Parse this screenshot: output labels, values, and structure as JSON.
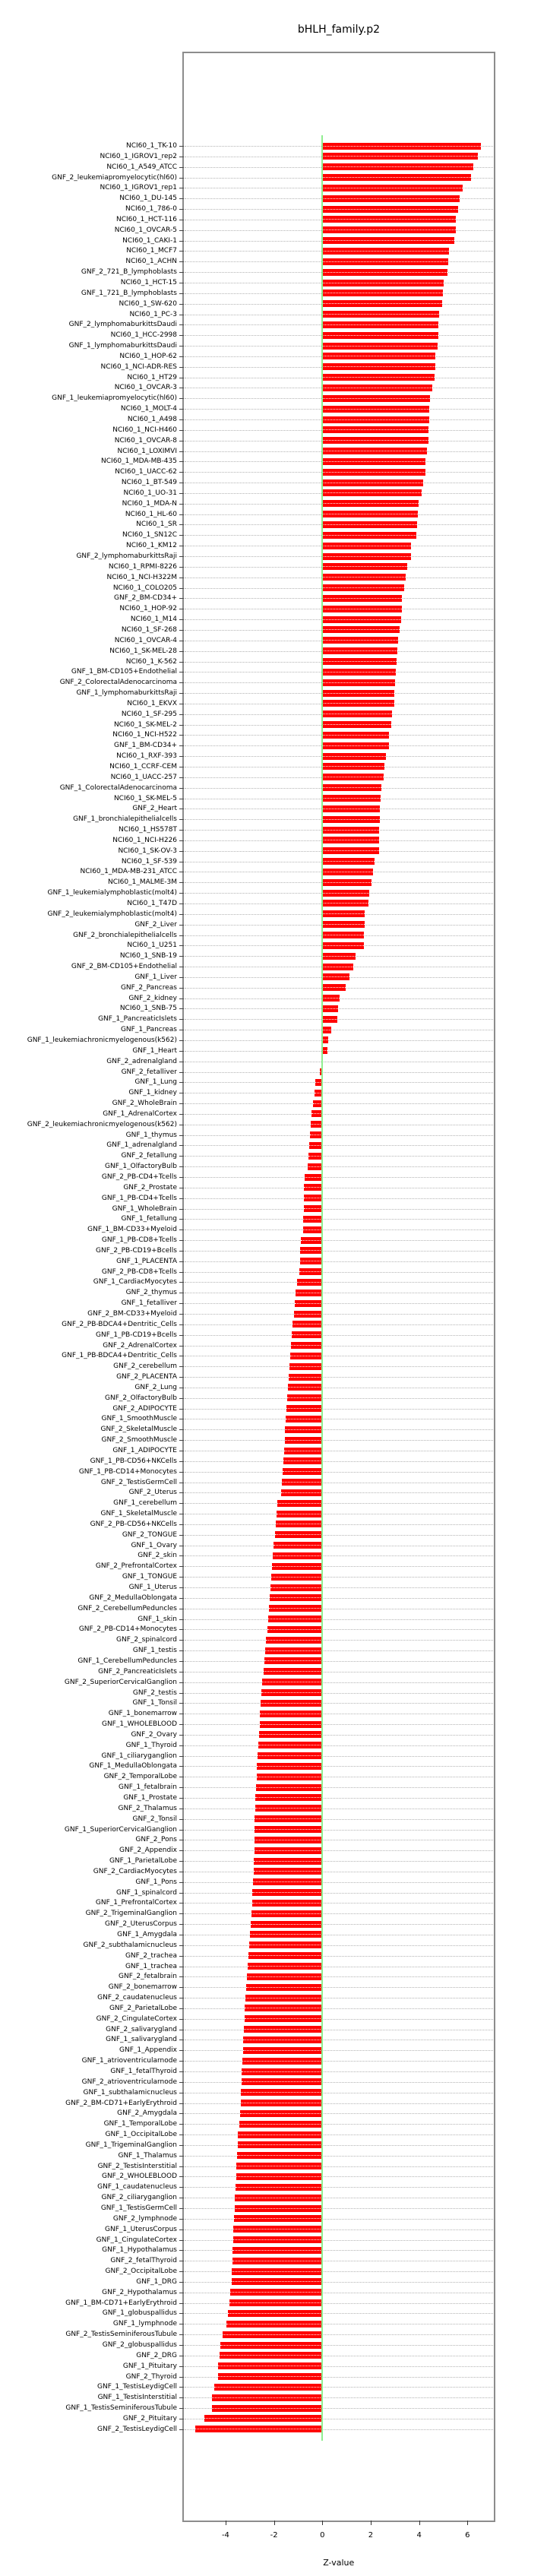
{
  "title": "bHLH_family.p2",
  "chart_data": {
    "type": "bar",
    "orientation": "horizontal",
    "title": "bHLH_family.p2",
    "xlabel": "Z-value",
    "xlim": [
      -5.7,
      7.0
    ],
    "xticks": [
      -4,
      -2,
      0,
      2,
      4,
      6
    ],
    "legend": "none",
    "grid": "dotted horizontal leader lines per row",
    "bar_color": "#ff0000",
    "zero_line_color": "#90ee90",
    "frame_color": "#8c8c8c",
    "categories": [
      "NCI60_1_TK-10",
      "NCI60_1_IGROV1_rep2",
      "NCI60_1_A549_ATCC",
      "GNF_2_leukemiapromyelocytic(hl60)",
      "NCI60_1_IGROV1_rep1",
      "NCI60_1_DU-145",
      "NCI60_1_786-0",
      "NCI60_1_HCT-116",
      "NCI60_1_OVCAR-5",
      "NCI60_1_CAKI-1",
      "NCI60_1_MCF7",
      "NCI60_1_ACHN",
      "GNF_2_721_B_lymphoblasts",
      "NCI60_1_HCT-15",
      "GNF_1_721_B_lymphoblasts",
      "NCI60_1_SW-620",
      "NCI60_1_PC-3",
      "GNF_2_lymphomaburkittsDaudi",
      "NCI60_1_HCC-2998",
      "GNF_1_lymphomaburkittsDaudi",
      "NCI60_1_HOP-62",
      "NCI60_1_NCI-ADR-RES",
      "NCI60_1_HT29",
      "NCI60_1_OVCAR-3",
      "GNF_1_leukemiapromyelocytic(hl60)",
      "NCI60_1_MOLT-4",
      "NCI60_1_A498",
      "NCI60_1_NCI-H460",
      "NCI60_1_OVCAR-8",
      "NCI60_1_LOXIMVI",
      "NCI60_1_MDA-MB-435",
      "NCI60_1_UACC-62",
      "NCI60_1_BT-549",
      "NCI60_1_UO-31",
      "NCI60_1_MDA-N",
      "NCI60_1_HL-60",
      "NCI60_1_SR",
      "NCI60_1_SN12C",
      "NCI60_1_KM12",
      "GNF_2_lymphomaburkittsRaji",
      "NCI60_1_RPMI-8226",
      "NCI60_1_NCI-H322M",
      "NCI60_1_COLO205",
      "GNF_2_BM-CD34+",
      "NCI60_1_HOP-92",
      "NCI60_1_M14",
      "NCI60_1_SF-268",
      "NCI60_1_OVCAR-4",
      "NCI60_1_SK-MEL-28",
      "NCI60_1_K-562",
      "GNF_1_BM-CD105+Endothelial",
      "GNF_2_ColorectalAdenocarcinoma",
      "GNF_1_lymphomaburkittsRaji",
      "NCI60_1_EKVX",
      "NCI60_1_SF-295",
      "NCI60_1_SK-MEL-2",
      "NCI60_1_NCI-H522",
      "GNF_1_BM-CD34+",
      "NCI60_1_RXF-393",
      "NCI60_1_CCRF-CEM",
      "NCI60_1_UACC-257",
      "GNF_1_ColorectalAdenocarcinoma",
      "NCI60_1_SK-MEL-5",
      "GNF_2_Heart",
      "GNF_1_bronchialepithelialcells",
      "NCI60_1_HS578T",
      "NCI60_1_NCI-H226",
      "NCI60_1_SK-OV-3",
      "NCI60_1_SF-539",
      "NCI60_1_MDA-MB-231_ATCC",
      "NCI60_1_MALME-3M",
      "GNF_1_leukemialymphoblastic(molt4)",
      "NCI60_1_T47D",
      "GNF_2_leukemialymphoblastic(molt4)",
      "GNF_2_Liver",
      "GNF_2_bronchialepithelialcells",
      "NCI60_1_U251",
      "NCI60_1_SNB-19",
      "GNF_2_BM-CD105+Endothelial",
      "GNF_1_Liver",
      "GNF_2_Pancreas",
      "GNF_2_kidney",
      "NCI60_1_SNB-75",
      "GNF_1_PancreaticIslets",
      "GNF_1_Pancreas",
      "GNF_1_leukemiachronicmyelogenous(k562)",
      "GNF_1_Heart",
      "GNF_2_adrenalgland",
      "GNF_2_fetalliver",
      "GNF_1_Lung",
      "GNF_1_kidney",
      "GNF_2_WholeBrain",
      "GNF_1_AdrenalCortex",
      "GNF_2_leukemiachronicmyelogenous(k562)",
      "GNF_1_thymus",
      "GNF_1_adrenalgland",
      "GNF_2_fetallung",
      "GNF_1_OlfactoryBulb",
      "GNF_2_PB-CD4+Tcells",
      "GNF_2_Prostate",
      "GNF_1_PB-CD4+Tcells",
      "GNF_1_WholeBrain",
      "GNF_1_fetallung",
      "GNF_1_BM-CD33+Myeloid",
      "GNF_1_PB-CD8+Tcells",
      "GNF_2_PB-CD19+Bcells",
      "GNF_1_PLACENTA",
      "GNF_2_PB-CD8+Tcells",
      "GNF_1_CardiacMyocytes",
      "GNF_2_thymus",
      "GNF_1_fetalliver",
      "GNF_2_BM-CD33+Myeloid",
      "GNF_2_PB-BDCA4+Dentritic_Cells",
      "GNF_1_PB-CD19+Bcells",
      "GNF_2_AdrenalCortex",
      "GNF_1_PB-BDCA4+Dentritic_Cells",
      "GNF_2_cerebellum",
      "GNF_2_PLACENTA",
      "GNF_2_Lung",
      "GNF_2_OlfactoryBulb",
      "GNF_2_ADIPOCYTE",
      "GNF_1_SmoothMuscle",
      "GNF_2_SkeletalMuscle",
      "GNF_2_SmoothMuscle",
      "GNF_1_ADIPOCYTE",
      "GNF_1_PB-CD56+NKCells",
      "GNF_1_PB-CD14+Monocytes",
      "GNF_2_TestisGermCell",
      "GNF_2_Uterus",
      "GNF_1_cerebellum",
      "GNF_1_SkeletalMuscle",
      "GNF_2_PB-CD56+NKCells",
      "GNF_2_TONGUE",
      "GNF_1_Ovary",
      "GNF_2_skin",
      "GNF_2_PrefrontalCortex",
      "GNF_1_TONGUE",
      "GNF_1_Uterus",
      "GNF_2_MedullaOblongata",
      "GNF_2_CerebellumPeduncles",
      "GNF_1_skin",
      "GNF_2_PB-CD14+Monocytes",
      "GNF_2_spinalcord",
      "GNF_1_testis",
      "GNF_1_CerebellumPeduncles",
      "GNF_2_PancreaticIslets",
      "GNF_2_SuperiorCervicalGanglion",
      "GNF_2_testis",
      "GNF_1_Tonsil",
      "GNF_1_bonemarrow",
      "GNF_1_WHOLEBLOOD",
      "GNF_2_Ovary",
      "GNF_1_Thyroid",
      "GNF_1_ciliaryganglion",
      "GNF_1_MedullaOblongata",
      "GNF_2_TemporalLobe",
      "GNF_1_fetalbrain",
      "GNF_1_Prostate",
      "GNF_2_Thalamus",
      "GNF_2_Tonsil",
      "GNF_1_SuperiorCervicalGanglion",
      "GNF_2_Pons",
      "GNF_2_Appendix",
      "GNF_1_ParietalLobe",
      "GNF_2_CardiacMyocytes",
      "GNF_1_Pons",
      "GNF_1_spinalcord",
      "GNF_1_PrefrontalCortex",
      "GNF_2_TrigeminalGanglion",
      "GNF_2_UterusCorpus",
      "GNF_1_Amygdala",
      "GNF_2_subthalamicnucleus",
      "GNF_2_trachea",
      "GNF_1_trachea",
      "GNF_2_fetalbrain",
      "GNF_2_bonemarrow",
      "GNF_2_caudatenucleus",
      "GNF_2_ParietalLobe",
      "GNF_2_CingulateCortex",
      "GNF_2_salivarygland",
      "GNF_1_salivarygland",
      "GNF_1_Appendix",
      "GNF_1_atrioventricularnode",
      "GNF_1_fetalThyroid",
      "GNF_2_atrioventricularnode",
      "GNF_1_subthalamicnucleus",
      "GNF_2_BM-CD71+EarlyErythroid",
      "GNF_2_Amygdala",
      "GNF_1_TemporalLobe",
      "GNF_1_OccipitalLobe",
      "GNF_1_TrigeminalGanglion",
      "GNF_1_Thalamus",
      "GNF_2_TestisInterstitial",
      "GNF_2_WHOLEBLOOD",
      "GNF_1_caudatenucleus",
      "GNF_2_ciliaryganglion",
      "GNF_1_TestisGermCell",
      "GNF_2_lymphnode",
      "GNF_1_UterusCorpus",
      "GNF_1_CingulateCortex",
      "GNF_1_Hypothalamus",
      "GNF_2_fetalThyroid",
      "GNF_2_OccipitalLobe",
      "GNF_1_DRG",
      "GNF_2_Hypothalamus",
      "GNF_1_BM-CD71+EarlyErythroid",
      "GNF_1_globuspallidus",
      "GNF_1_lymphnode",
      "GNF_2_TestisSeminiferousTubule",
      "GNF_2_globuspallidus",
      "GNF_2_DRG",
      "GNF_1_Pituitary",
      "GNF_2_Thyroid",
      "GNF_1_TestisLeydigCell",
      "GNF_1_TestisInterstitial",
      "GNF_1_TestisSeminiferousTubule",
      "GNF_2_Pituitary",
      "GNF_2_TestisLeydigCell"
    ],
    "values": [
      6.55,
      6.42,
      6.25,
      6.16,
      5.79,
      5.69,
      5.6,
      5.53,
      5.52,
      5.44,
      5.25,
      5.2,
      5.18,
      5.03,
      4.98,
      4.96,
      4.84,
      4.8,
      4.79,
      4.75,
      4.67,
      4.66,
      4.64,
      4.54,
      4.45,
      4.43,
      4.41,
      4.39,
      4.38,
      4.31,
      4.26,
      4.25,
      4.17,
      4.12,
      3.97,
      3.96,
      3.91,
      3.89,
      3.68,
      3.65,
      3.52,
      3.44,
      3.39,
      3.29,
      3.28,
      3.25,
      3.2,
      3.12,
      3.1,
      3.08,
      3.05,
      3.02,
      2.99,
      2.97,
      2.89,
      2.86,
      2.76,
      2.74,
      2.63,
      2.57,
      2.55,
      2.44,
      2.41,
      2.39,
      2.37,
      2.36,
      2.35,
      2.34,
      2.16,
      2.08,
      2.02,
      1.95,
      1.9,
      1.76,
      1.74,
      1.73,
      1.72,
      1.38,
      1.29,
      1.13,
      0.95,
      0.71,
      0.64,
      0.61,
      0.37,
      0.24,
      0.21,
      -0.05,
      -0.09,
      -0.3,
      -0.33,
      -0.39,
      -0.45,
      -0.48,
      -0.5,
      -0.55,
      -0.58,
      -0.62,
      -0.74,
      -0.75,
      -0.76,
      -0.77,
      -0.78,
      -0.8,
      -0.88,
      -0.91,
      -0.93,
      -0.96,
      -1.06,
      -1.1,
      -1.14,
      -1.18,
      -1.22,
      -1.26,
      -1.3,
      -1.33,
      -1.36,
      -1.4,
      -1.43,
      -1.46,
      -1.49,
      -1.52,
      -1.54,
      -1.55,
      -1.57,
      -1.6,
      -1.63,
      -1.66,
      -1.7,
      -1.85,
      -1.89,
      -1.93,
      -1.97,
      -2.01,
      -2.05,
      -2.08,
      -2.11,
      -2.15,
      -2.18,
      -2.21,
      -2.24,
      -2.27,
      -2.32,
      -2.35,
      -2.4,
      -2.44,
      -2.48,
      -2.52,
      -2.55,
      -2.57,
      -2.6,
      -2.62,
      -2.65,
      -2.68,
      -2.7,
      -2.72,
      -2.75,
      -2.77,
      -2.78,
      -2.79,
      -2.8,
      -2.8,
      -2.81,
      -2.83,
      -2.85,
      -2.87,
      -2.89,
      -2.91,
      -2.94,
      -2.95,
      -2.98,
      -3.02,
      -3.06,
      -3.1,
      -3.13,
      -3.16,
      -3.18,
      -3.2,
      -3.22,
      -3.25,
      -3.27,
      -3.29,
      -3.31,
      -3.33,
      -3.34,
      -3.36,
      -3.38,
      -3.4,
      -3.44,
      -3.48,
      -3.5,
      -3.53,
      -3.55,
      -3.57,
      -3.59,
      -3.61,
      -3.63,
      -3.65,
      -3.67,
      -3.69,
      -3.71,
      -3.73,
      -3.75,
      -3.76,
      -3.8,
      -3.85,
      -3.9,
      -3.98,
      -4.12,
      -4.22,
      -4.26,
      -4.3,
      -4.31,
      -4.48,
      -4.56,
      -4.57,
      -4.89,
      -5.25
    ]
  }
}
